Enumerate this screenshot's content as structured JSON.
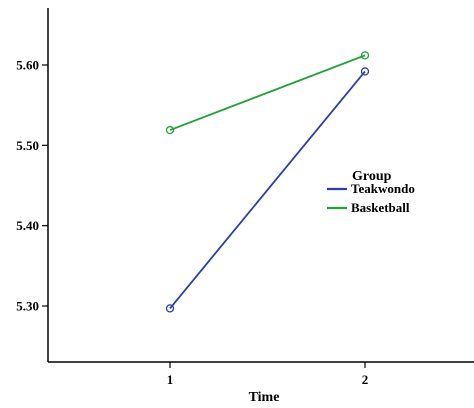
{
  "chart_data": {
    "type": "line",
    "xlabel": "Time",
    "ylabel": "",
    "categories": [
      "1",
      "2"
    ],
    "ylim": [
      5.2,
      5.67
    ],
    "yticks": [
      "5.30",
      "5.40",
      "5.50",
      "5.60"
    ],
    "ytick_values": [
      5.3,
      5.4,
      5.5,
      5.6
    ],
    "grid": false,
    "legend": {
      "title": "Group",
      "placement": "right"
    },
    "series": [
      {
        "name": "Teakwondo",
        "values": [
          5.297,
          5.592
        ],
        "color": "#2b3fa8"
      },
      {
        "name": "Basketball",
        "values": [
          5.519,
          5.612
        ],
        "color": "#22a33a"
      }
    ]
  }
}
